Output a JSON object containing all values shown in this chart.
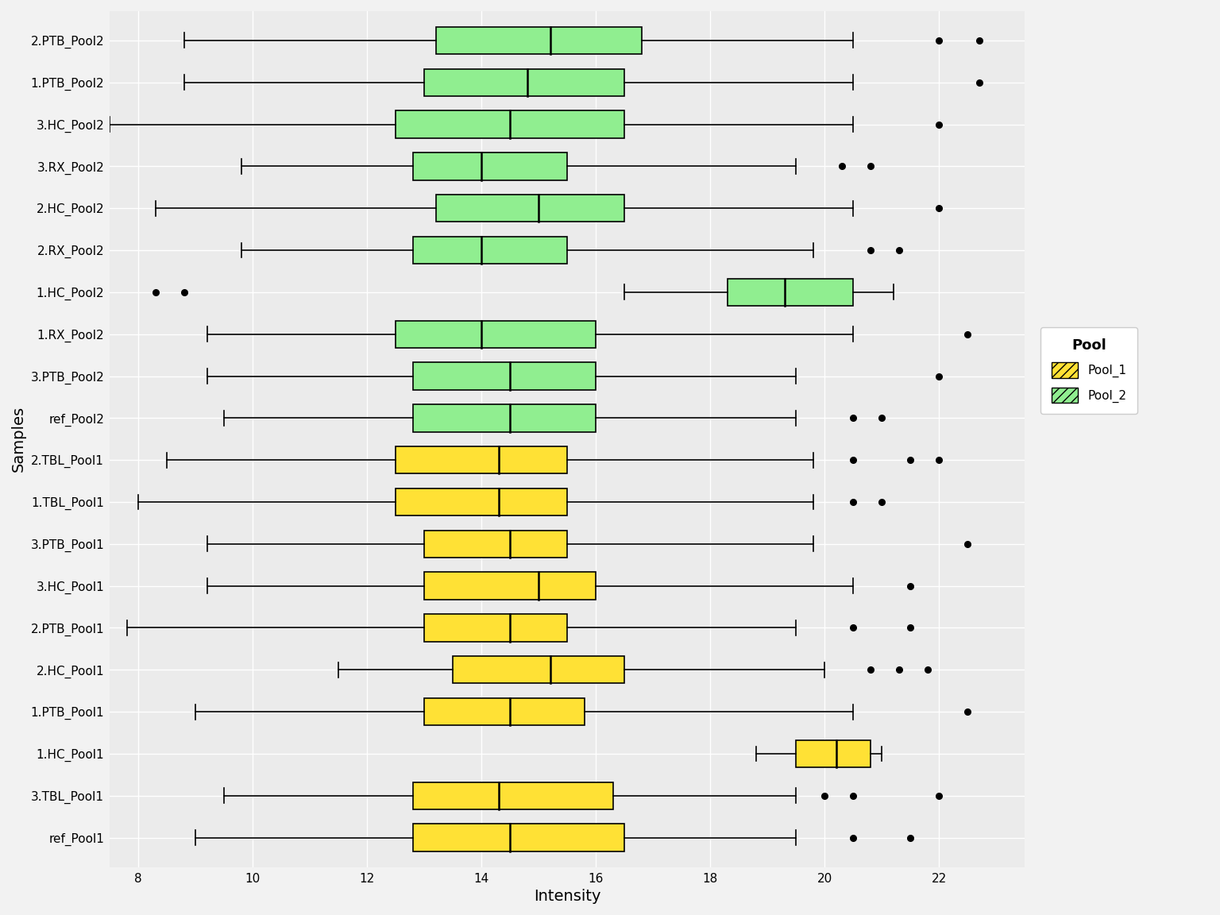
{
  "samples": [
    "2.PTB_Pool2",
    "1.PTB_Pool2",
    "3.HC_Pool2",
    "3.RX_Pool2",
    "2.HC_Pool2",
    "2.RX_Pool2",
    "1.HC_Pool2",
    "1.RX_Pool2",
    "3.PTB_Pool2",
    "ref_Pool2",
    "2.TBL_Pool1",
    "1.TBL_Pool1",
    "3.PTB_Pool1",
    "3.HC_Pool1",
    "2.PTB_Pool1",
    "2.HC_Pool1",
    "1.PTB_Pool1",
    "1.HC_Pool1",
    "3.TBL_Pool1",
    "ref_Pool1"
  ],
  "pool": [
    "Pool_2",
    "Pool_2",
    "Pool_2",
    "Pool_2",
    "Pool_2",
    "Pool_2",
    "Pool_2",
    "Pool_2",
    "Pool_2",
    "Pool_2",
    "Pool_1",
    "Pool_1",
    "Pool_1",
    "Pool_1",
    "Pool_1",
    "Pool_1",
    "Pool_1",
    "Pool_1",
    "Pool_1",
    "Pool_1"
  ],
  "colors": {
    "Pool_1": "#FFE135",
    "Pool_2": "#90EE90"
  },
  "boxplot_stats": {
    "2.PTB_Pool2": {
      "whislo": 8.8,
      "q1": 13.2,
      "med": 15.2,
      "q3": 16.8,
      "whishi": 20.5,
      "fliers": [
        22.0,
        22.7
      ]
    },
    "1.PTB_Pool2": {
      "whislo": 8.8,
      "q1": 13.0,
      "med": 14.8,
      "q3": 16.5,
      "whishi": 20.5,
      "fliers": [
        22.7
      ]
    },
    "3.HC_Pool2": {
      "whislo": 7.5,
      "q1": 12.5,
      "med": 14.5,
      "q3": 16.5,
      "whishi": 20.5,
      "fliers": [
        22.0
      ]
    },
    "3.RX_Pool2": {
      "whislo": 9.8,
      "q1": 12.8,
      "med": 14.0,
      "q3": 15.5,
      "whishi": 19.5,
      "fliers": [
        20.3,
        20.8
      ]
    },
    "2.HC_Pool2": {
      "whislo": 8.3,
      "q1": 13.2,
      "med": 15.0,
      "q3": 16.5,
      "whishi": 20.5,
      "fliers": [
        22.0
      ]
    },
    "2.RX_Pool2": {
      "whislo": 9.8,
      "q1": 12.8,
      "med": 14.0,
      "q3": 15.5,
      "whishi": 19.8,
      "fliers": [
        20.8,
        21.3
      ]
    },
    "1.HC_Pool2": {
      "whislo": 16.5,
      "q1": 18.3,
      "med": 19.3,
      "q3": 20.5,
      "whishi": 21.2,
      "fliers": [
        8.3,
        8.8
      ]
    },
    "1.RX_Pool2": {
      "whislo": 9.2,
      "q1": 12.5,
      "med": 14.0,
      "q3": 16.0,
      "whishi": 20.5,
      "fliers": [
        22.5
      ]
    },
    "3.PTB_Pool2": {
      "whislo": 9.2,
      "q1": 12.8,
      "med": 14.5,
      "q3": 16.0,
      "whishi": 19.5,
      "fliers": [
        22.0
      ]
    },
    "ref_Pool2": {
      "whislo": 9.5,
      "q1": 12.8,
      "med": 14.5,
      "q3": 16.0,
      "whishi": 19.5,
      "fliers": [
        20.5,
        21.0
      ]
    },
    "2.TBL_Pool1": {
      "whislo": 8.5,
      "q1": 12.5,
      "med": 14.3,
      "q3": 15.5,
      "whishi": 19.8,
      "fliers": [
        20.5,
        21.5,
        22.0
      ]
    },
    "1.TBL_Pool1": {
      "whislo": 8.0,
      "q1": 12.5,
      "med": 14.3,
      "q3": 15.5,
      "whishi": 19.8,
      "fliers": [
        20.5,
        21.0
      ]
    },
    "3.PTB_Pool1": {
      "whislo": 9.2,
      "q1": 13.0,
      "med": 14.5,
      "q3": 15.5,
      "whishi": 19.8,
      "fliers": [
        22.5
      ]
    },
    "3.HC_Pool1": {
      "whislo": 9.2,
      "q1": 13.0,
      "med": 15.0,
      "q3": 16.0,
      "whishi": 20.5,
      "fliers": [
        21.5
      ]
    },
    "2.PTB_Pool1": {
      "whislo": 7.8,
      "q1": 13.0,
      "med": 14.5,
      "q3": 15.5,
      "whishi": 19.5,
      "fliers": [
        20.5,
        21.5
      ]
    },
    "2.HC_Pool1": {
      "whislo": 11.5,
      "q1": 13.5,
      "med": 15.2,
      "q3": 16.5,
      "whishi": 20.0,
      "fliers": [
        20.8,
        21.3,
        21.8
      ]
    },
    "1.PTB_Pool1": {
      "whislo": 9.0,
      "q1": 13.0,
      "med": 14.5,
      "q3": 15.8,
      "whishi": 20.5,
      "fliers": [
        22.5
      ]
    },
    "1.HC_Pool1": {
      "whislo": 18.8,
      "q1": 19.5,
      "med": 20.2,
      "q3": 20.8,
      "whishi": 21.0,
      "fliers": []
    },
    "3.TBL_Pool1": {
      "whislo": 9.5,
      "q1": 12.8,
      "med": 14.3,
      "q3": 16.3,
      "whishi": 19.5,
      "fliers": [
        20.0,
        20.5,
        22.0
      ]
    },
    "ref_Pool1": {
      "whislo": 9.0,
      "q1": 12.8,
      "med": 14.5,
      "q3": 16.5,
      "whishi": 19.5,
      "fliers": [
        20.5,
        21.5
      ]
    }
  },
  "xlabel": "Intensity",
  "ylabel": "Samples",
  "legend_title": "Pool",
  "xlim": [
    7.5,
    23.5
  ],
  "xticks": [
    8,
    10,
    12,
    14,
    16,
    18,
    20,
    22
  ],
  "background_color": "#EBEBEB",
  "grid_color": "#FFFFFF",
  "pool1_color": "#FFE135",
  "pool2_color": "#90EE90",
  "fig_bg": "#F2F2F2"
}
